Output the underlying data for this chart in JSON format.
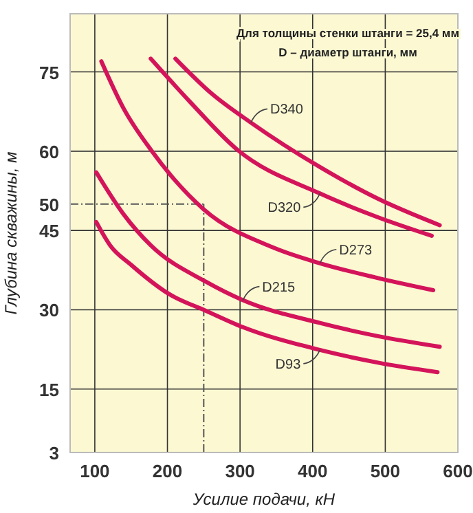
{
  "chart_data": {
    "type": "line",
    "xlabel": "Усилие подачи, кН",
    "ylabel": "Глубина скважины, м",
    "annotations": [
      "Для толщины стенки штанги = 25,4 мм",
      "D – диаметр штанги, мм"
    ],
    "xlim": [
      66,
      600
    ],
    "xticks": [
      100,
      200,
      300,
      400,
      500,
      600
    ],
    "ylim": [
      3,
      86
    ],
    "yticks": [
      3,
      15,
      30,
      45,
      60,
      75
    ],
    "grid": true,
    "marker": "none",
    "line_style": "solid",
    "ref_lines": [
      {
        "axis": "y",
        "value": 50,
        "label": "50",
        "color": "#555555",
        "line_style": "dashed"
      },
      {
        "axis": "x",
        "value": 250,
        "color": "#555555",
        "line_style": "dashed"
      }
    ],
    "series": [
      {
        "name": "D340",
        "color": "#d4145a",
        "x": [
          211,
          260,
          315,
          410,
          490,
          575
        ],
        "values": [
          77.5,
          71,
          65.4,
          57,
          51,
          46
        ]
      },
      {
        "name": "D320",
        "color": "#d4145a",
        "x": [
          177,
          230,
          296,
          410,
          490,
          564
        ],
        "values": [
          77.5,
          69.5,
          60.3,
          52,
          47.5,
          44
        ]
      },
      {
        "name": "D273",
        "color": "#d4145a",
        "x": [
          109,
          140,
          177,
          250,
          347,
          410,
          490,
          566
        ],
        "values": [
          77,
          68,
          60.3,
          49,
          41.7,
          38.8,
          36,
          33.7
        ]
      },
      {
        "name": "D215",
        "color": "#d4145a",
        "x": [
          102,
          140,
          177,
          253,
          304,
          410,
          490,
          575
        ],
        "values": [
          56,
          48,
          42.2,
          35.3,
          31.8,
          27.5,
          25,
          23
        ]
      },
      {
        "name": "D93",
        "color": "#d4145a",
        "x": [
          102,
          121,
          150,
          202,
          253,
          304,
          410,
          490,
          572
        ],
        "values": [
          46.6,
          42.2,
          38.5,
          33,
          29.8,
          26.7,
          22.4,
          20,
          18.2
        ]
      }
    ]
  }
}
